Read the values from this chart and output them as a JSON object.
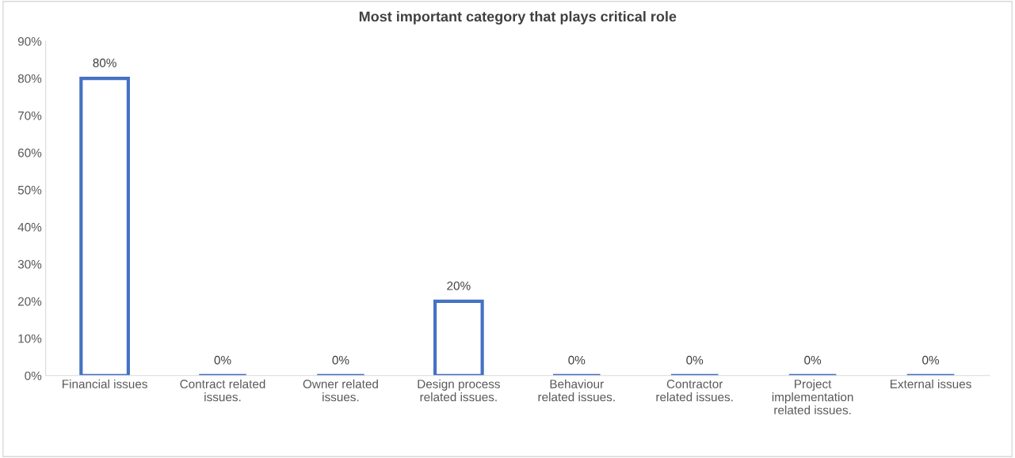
{
  "chart_data": {
    "type": "bar",
    "title": "Most important category that plays critical role",
    "categories": [
      "Financial issues",
      "Contract related\nissues.",
      "Owner related\nissues.",
      "Design process\nrelated issues.",
      "Behaviour\nrelated issues.",
      "Contractor\nrelated issues.",
      "Project\nimplementation\nrelated issues.",
      "External issues"
    ],
    "values": [
      80,
      0,
      0,
      20,
      0,
      0,
      0,
      0
    ],
    "value_labels": [
      "80%",
      "0%",
      "0%",
      "20%",
      "0%",
      "0%",
      "0%",
      "0%"
    ],
    "color": "#4472c4",
    "ylim": [
      0,
      90
    ],
    "yticks": [
      {
        "value": 0,
        "label": "0%"
      },
      {
        "value": 10,
        "label": "10%"
      },
      {
        "value": 20,
        "label": "20%"
      },
      {
        "value": 30,
        "label": "30%"
      },
      {
        "value": 40,
        "label": "40%"
      },
      {
        "value": 50,
        "label": "50%"
      },
      {
        "value": 60,
        "label": "60%"
      },
      {
        "value": 70,
        "label": "70%"
      },
      {
        "value": 80,
        "label": "80%"
      },
      {
        "value": 90,
        "label": "90%"
      }
    ],
    "grid": false,
    "legend": false
  }
}
